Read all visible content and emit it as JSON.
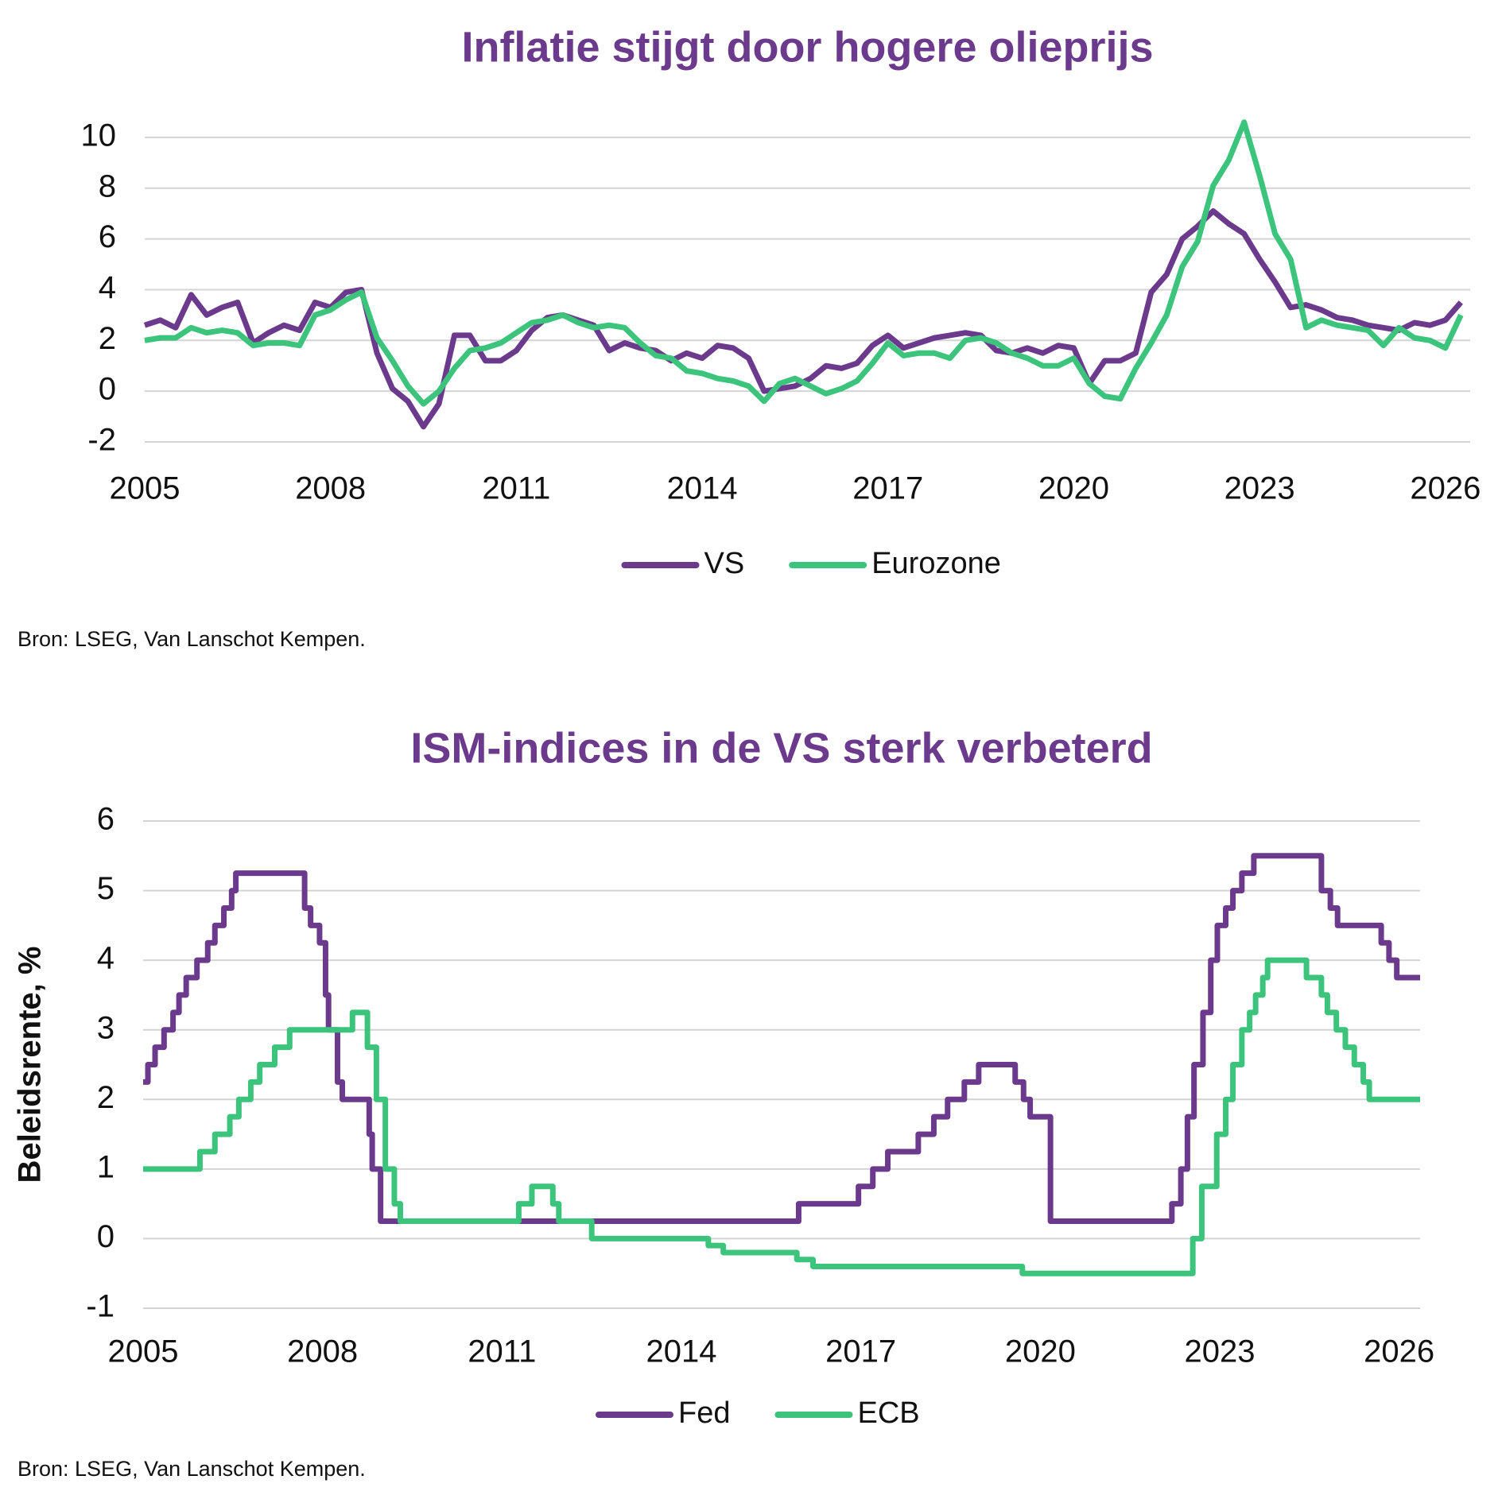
{
  "chart_data": [
    {
      "type": "line",
      "title": "Inflatie stijgt door hogere olieprijs",
      "x": [
        2005,
        2005.25,
        2005.5,
        2005.75,
        2006,
        2006.25,
        2006.5,
        2006.75,
        2007,
        2007.25,
        2007.5,
        2007.75,
        2008,
        2008.25,
        2008.5,
        2008.75,
        2009,
        2009.25,
        2009.5,
        2009.75,
        2010,
        2010.25,
        2010.5,
        2010.75,
        2011,
        2011.25,
        2011.5,
        2011.75,
        2012,
        2012.25,
        2012.5,
        2012.75,
        2013,
        2013.25,
        2013.5,
        2013.75,
        2014,
        2014.25,
        2014.5,
        2014.75,
        2015,
        2015.25,
        2015.5,
        2015.75,
        2016,
        2016.25,
        2016.5,
        2016.75,
        2017,
        2017.25,
        2017.5,
        2017.75,
        2018,
        2018.25,
        2018.5,
        2018.75,
        2019,
        2019.25,
        2019.5,
        2019.75,
        2020,
        2020.25,
        2020.5,
        2020.75,
        2021,
        2021.25,
        2021.5,
        2021.75,
        2022,
        2022.25,
        2022.5,
        2022.75,
        2023,
        2023.25,
        2023.5,
        2023.75,
        2024,
        2024.25,
        2024.5,
        2024.75,
        2025,
        2025.25,
        2025.5,
        2025.75,
        2026,
        2026.25
      ],
      "series": [
        {
          "name": "VS",
          "color": "#6b3a8c",
          "values": [
            2.6,
            2.8,
            2.5,
            3.8,
            3.0,
            3.3,
            3.5,
            1.9,
            2.3,
            2.6,
            2.4,
            3.5,
            3.3,
            3.9,
            4.0,
            1.5,
            0.1,
            -0.4,
            -1.4,
            -0.5,
            2.2,
            2.2,
            1.2,
            1.2,
            1.6,
            2.4,
            2.9,
            3.0,
            2.8,
            2.6,
            1.6,
            1.9,
            1.7,
            1.6,
            1.2,
            1.5,
            1.3,
            1.8,
            1.7,
            1.3,
            0.0,
            0.1,
            0.2,
            0.5,
            1.0,
            0.9,
            1.1,
            1.8,
            2.2,
            1.7,
            1.9,
            2.1,
            2.2,
            2.3,
            2.2,
            1.6,
            1.5,
            1.7,
            1.5,
            1.8,
            1.7,
            0.3,
            1.2,
            1.2,
            1.5,
            3.9,
            4.6,
            6.0,
            6.5,
            7.1,
            6.6,
            6.2,
            5.2,
            4.3,
            3.3,
            3.4,
            3.2,
            2.9,
            2.8,
            2.6,
            2.5,
            2.4,
            2.7,
            2.6,
            2.8,
            3.5
          ]
        },
        {
          "name": "Eurozone",
          "color": "#3cc47c",
          "values": [
            2.0,
            2.1,
            2.1,
            2.5,
            2.3,
            2.4,
            2.3,
            1.8,
            1.9,
            1.9,
            1.8,
            3.0,
            3.2,
            3.6,
            3.9,
            2.1,
            1.2,
            0.2,
            -0.5,
            0.0,
            0.9,
            1.6,
            1.7,
            1.9,
            2.3,
            2.7,
            2.8,
            3.0,
            2.7,
            2.5,
            2.6,
            2.5,
            1.9,
            1.4,
            1.3,
            0.8,
            0.7,
            0.5,
            0.4,
            0.2,
            -0.4,
            0.3,
            0.5,
            0.2,
            -0.1,
            0.1,
            0.4,
            1.1,
            1.9,
            1.4,
            1.5,
            1.5,
            1.3,
            2.0,
            2.1,
            1.9,
            1.5,
            1.3,
            1.0,
            1.0,
            1.3,
            0.3,
            -0.2,
            -0.3,
            0.9,
            1.9,
            3.0,
            4.9,
            5.9,
            8.1,
            9.1,
            10.6,
            8.5,
            6.2,
            5.2,
            2.5,
            2.8,
            2.6,
            2.5,
            2.4,
            1.8,
            2.5,
            2.1,
            2.0,
            1.7,
            3.0
          ]
        }
      ],
      "xlim": [
        2005,
        2026.4
      ],
      "xticks": [
        2005,
        2008,
        2011,
        2014,
        2017,
        2020,
        2023,
        2026
      ],
      "ylim": [
        -2,
        11
      ],
      "yticks": [
        -2,
        0,
        2,
        4,
        6,
        8,
        10
      ],
      "grid": true,
      "source": "Bron: LSEG, Van Lanschot Kempen."
    },
    {
      "type": "line",
      "step": true,
      "title": "ISM-indices in de VS sterk verbeterd",
      "y_label": "Beleidsrente, %",
      "series": [
        {
          "name": "Fed",
          "color": "#6b3a8c",
          "x": [
            2005,
            2005.08,
            2005.2,
            2005.35,
            2005.5,
            2005.6,
            2005.72,
            2005.9,
            2006.08,
            2006.2,
            2006.35,
            2006.48,
            2006.55,
            2007.7,
            2007.8,
            2007.95,
            2008.05,
            2008.1,
            2008.25,
            2008.33,
            2008.78,
            2008.83,
            2008.97,
            2015.96,
            2016.96,
            2017.2,
            2017.45,
            2017.96,
            2018.22,
            2018.45,
            2018.73,
            2018.97,
            2019.58,
            2019.72,
            2019.83,
            2020.17,
            2022.2,
            2022.35,
            2022.46,
            2022.57,
            2022.72,
            2022.85,
            2022.96,
            2023.1,
            2023.22,
            2023.37,
            2023.57,
            2024.7,
            2024.85,
            2024.97,
            2025.7,
            2025.83,
            2025.96,
            2026.35
          ],
          "values": [
            2.25,
            2.5,
            2.75,
            3.0,
            3.25,
            3.5,
            3.75,
            4.0,
            4.25,
            4.5,
            4.75,
            5.0,
            5.25,
            4.75,
            4.5,
            4.25,
            3.5,
            3.0,
            2.25,
            2.0,
            1.5,
            1.0,
            0.25,
            0.5,
            0.75,
            1.0,
            1.25,
            1.5,
            1.75,
            2.0,
            2.25,
            2.5,
            2.25,
            2.0,
            1.75,
            0.25,
            0.5,
            1.0,
            1.75,
            2.5,
            3.25,
            4.0,
            4.5,
            4.75,
            5.0,
            5.25,
            5.5,
            5.0,
            4.75,
            4.5,
            4.25,
            4.0,
            3.75,
            3.75
          ]
        },
        {
          "name": "ECB",
          "color": "#3cc47c",
          "x": [
            2005,
            2005.95,
            2006.2,
            2006.45,
            2006.6,
            2006.8,
            2006.95,
            2007.2,
            2007.45,
            2008.5,
            2008.75,
            2008.9,
            2009.05,
            2009.2,
            2009.3,
            2011.28,
            2011.5,
            2011.85,
            2011.95,
            2012.5,
            2014.45,
            2014.7,
            2015.93,
            2016.2,
            2019.7,
            2022.55,
            2022.7,
            2022.95,
            2023.1,
            2023.22,
            2023.37,
            2023.5,
            2023.6,
            2023.72,
            2023.8,
            2024.45,
            2024.7,
            2024.8,
            2024.95,
            2025.1,
            2025.25,
            2025.4,
            2025.5,
            2026.35
          ],
          "values": [
            1.0,
            1.25,
            1.5,
            1.75,
            2.0,
            2.25,
            2.5,
            2.75,
            3.0,
            3.25,
            2.75,
            2.0,
            1.0,
            0.5,
            0.25,
            0.5,
            0.75,
            0.5,
            0.25,
            0.0,
            -0.1,
            -0.2,
            -0.3,
            -0.4,
            -0.5,
            0.0,
            0.75,
            1.5,
            2.0,
            2.5,
            3.0,
            3.25,
            3.5,
            3.75,
            4.0,
            3.75,
            3.5,
            3.25,
            3.0,
            2.75,
            2.5,
            2.25,
            2.0,
            2.0
          ]
        }
      ],
      "xlim": [
        2005,
        2026.35
      ],
      "xticks": [
        2005,
        2008,
        2011,
        2014,
        2017,
        2020,
        2023,
        2026
      ],
      "ylim": [
        -1,
        6
      ],
      "yticks": [
        -1,
        0,
        1,
        2,
        3,
        4,
        5,
        6
      ],
      "grid": true,
      "source": "Bron: LSEG, Van Lanschot Kempen."
    }
  ]
}
